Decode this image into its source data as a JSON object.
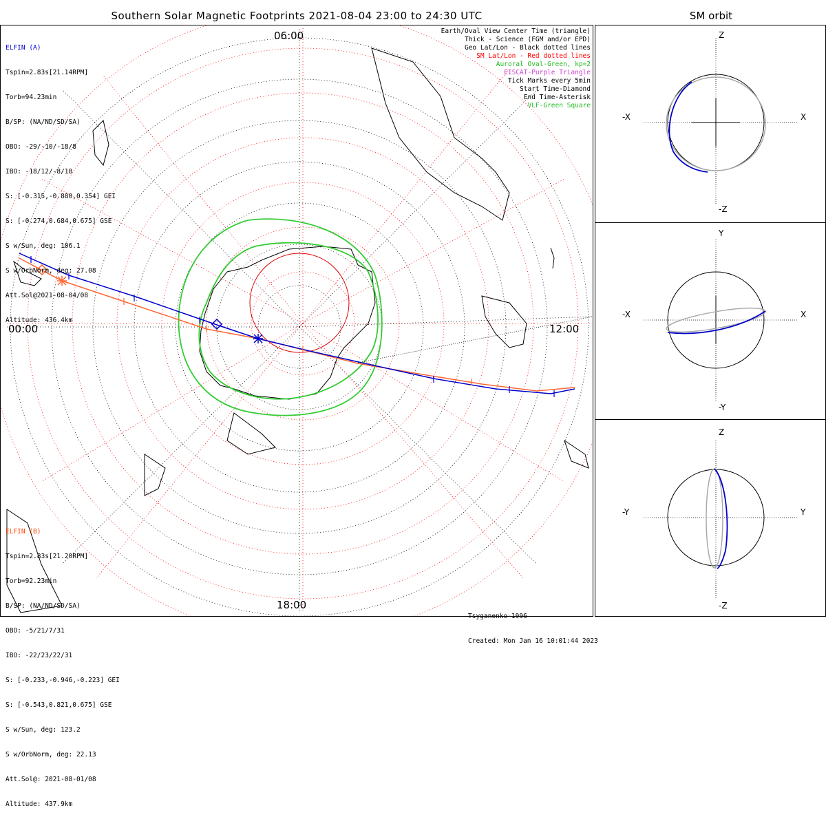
{
  "title": "Southern Solar Magnetic Footprints 2021-08-04 23:00 to 24:30 UTC",
  "side_title": "SM orbit",
  "time_labels": {
    "top": "06:00",
    "left": "00:00",
    "right": "12:00",
    "bottom": "18:00"
  },
  "elfin_a": {
    "name": "ELFIN (A)",
    "color": "#0000cc",
    "lines": [
      "Tspin=2.83s[21.14RPM]",
      "Torb=94.23min",
      "B/SP: (NA/ND/SD/SA)",
      "OBO: -29/-10/-18/8",
      "IBO: -18/12/-8/18",
      "S: [-0.315,-0.880,0.354] GEI",
      "S: [-0.274,0.684,0.675] GSE",
      "S w/Sun, deg: 106.1",
      "S w/OrbNorm, deg: 27.08",
      "Att.Sol@2021-08-04/08",
      "Altitude: 436.4km"
    ]
  },
  "elfin_b": {
    "name": "ELFIN (B)",
    "color": "#ff4400",
    "lines": [
      "Tspin=2.83s[21.20RPM]",
      "Torb=92.23min",
      "B/SP: (NA/ND/SD/SA)",
      "OBO: -5/21/7/31",
      "IBO: -22/23/22/31",
      "S: [-0.233,-0.946,-0.223] GEI",
      "S: [-0.543,0.821,0.675] GSE",
      "S w/Sun, deg: 123.2",
      "S w/OrbNorm, deg: 22.13",
      "Att.Sol@: 2021-08-01/08",
      "Altitude: 437.9km"
    ]
  },
  "legend": [
    {
      "text": "Earth/Oval View Center Time (triangle)",
      "color": "#000000"
    },
    {
      "text": "Thick - Science (FGM and/or EPD)",
      "color": "#000000"
    },
    {
      "text": "Geo Lat/Lon - Black dotted lines",
      "color": "#000000"
    },
    {
      "text": "SM Lat/Lon - Red dotted lines",
      "color": "#ff0000"
    },
    {
      "text": "Auroral Oval-Green, kp=2",
      "color": "#22bb22"
    },
    {
      "text": "EISCAT-Purple Triangle",
      "color": "#cc44cc"
    },
    {
      "text": "Tick Marks every 5min",
      "color": "#000000"
    },
    {
      "text": "Start Time-Diamond",
      "color": "#000000"
    },
    {
      "text": "End Time-Asterisk",
      "color": "#000000"
    },
    {
      "text": "VLF-Green Square",
      "color": "#22bb22"
    }
  ],
  "credits": [
    "Tsyganenko-1996",
    "Created: Mon Jan 16 10:01:44 2023"
  ],
  "orbit_panels": [
    {
      "top": "Z",
      "bottom": "-Z",
      "left": "-X",
      "right": "X"
    },
    {
      "top": "Y",
      "bottom": "-Y",
      "left": "-X",
      "right": "X"
    },
    {
      "top": "Z",
      "bottom": "-Z",
      "left": "-Y",
      "right": "Y"
    }
  ]
}
